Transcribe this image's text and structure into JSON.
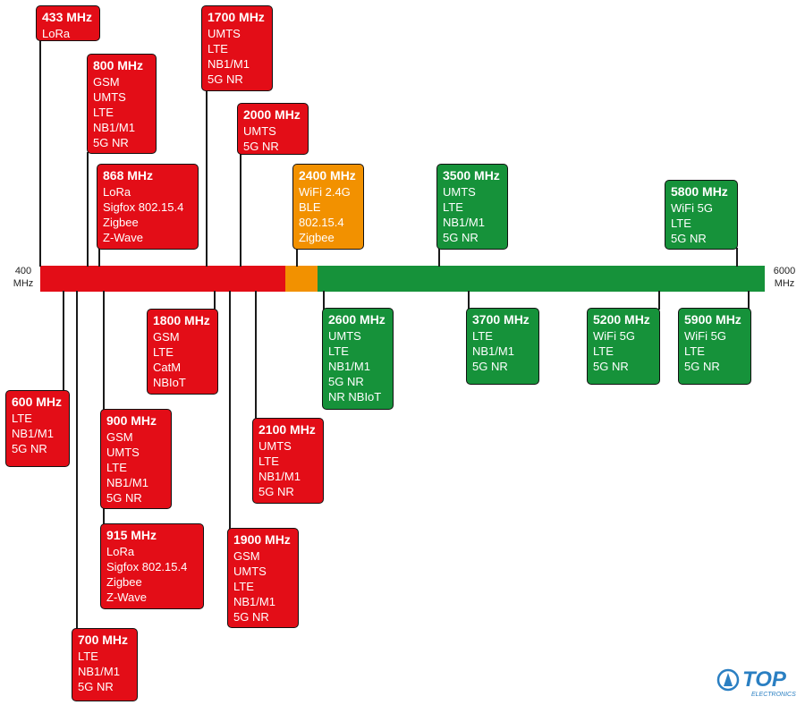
{
  "scale": {
    "start_label": [
      "400",
      "MHz"
    ],
    "end_label": [
      "6000",
      "MHz"
    ],
    "min_mhz": 400,
    "max_mhz": 6000
  },
  "segments": [
    {
      "name": "cellular-red",
      "from_mhz": 400,
      "to_mhz": 2400,
      "color": "#e30d17"
    },
    {
      "name": "orange",
      "from_mhz": 2400,
      "to_mhz": 2600,
      "color": "#f29100"
    },
    {
      "name": "green",
      "from_mhz": 2600,
      "to_mhz": 6000,
      "color": "#16923a"
    }
  ],
  "bands": [
    {
      "freq": "433 MHz",
      "color": "red",
      "techs": [
        "LoRa"
      ]
    },
    {
      "freq": "800 MHz",
      "color": "red",
      "techs": [
        "GSM",
        "UMTS",
        "LTE",
        "NB1/M1",
        "5G NR"
      ]
    },
    {
      "freq": "868 MHz",
      "color": "red",
      "techs": [
        "LoRa",
        "Sigfox 802.15.4",
        "Zigbee",
        "Z-Wave"
      ]
    },
    {
      "freq": "1700 MHz",
      "color": "red",
      "techs": [
        "UMTS",
        "LTE",
        "NB1/M1",
        "5G NR"
      ]
    },
    {
      "freq": "2000 MHz",
      "color": "red",
      "techs": [
        "UMTS",
        "5G NR"
      ]
    },
    {
      "freq": "2400 MHz",
      "color": "orange",
      "techs": [
        "WiFi 2.4G",
        "BLE",
        "802.15.4",
        "Zigbee"
      ]
    },
    {
      "freq": "3500 MHz",
      "color": "green",
      "techs": [
        "UMTS",
        "LTE",
        "NB1/M1",
        "5G NR"
      ]
    },
    {
      "freq": "5800 MHz",
      "color": "green",
      "techs": [
        "WiFi 5G",
        "LTE",
        "5G NR"
      ]
    },
    {
      "freq": "600 MHz",
      "color": "red",
      "techs": [
        "LTE",
        "NB1/M1",
        "5G NR"
      ]
    },
    {
      "freq": "700 MHz",
      "color": "red",
      "techs": [
        "LTE",
        "NB1/M1",
        "5G NR"
      ]
    },
    {
      "freq": "900 MHz",
      "color": "red",
      "techs": [
        "GSM",
        "UMTS",
        "LTE",
        "NB1/M1",
        "5G NR"
      ]
    },
    {
      "freq": "915 MHz",
      "color": "red",
      "techs": [
        "LoRa",
        "Sigfox 802.15.4",
        "Zigbee",
        "Z-Wave"
      ]
    },
    {
      "freq": "1800 MHz",
      "color": "red",
      "techs": [
        "GSM",
        "LTE",
        "CatM",
        "NBIoT"
      ]
    },
    {
      "freq": "1900 MHz",
      "color": "red",
      "techs": [
        "GSM",
        "UMTS",
        "LTE",
        "NB1/M1",
        "5G NR"
      ]
    },
    {
      "freq": "2100 MHz",
      "color": "red",
      "techs": [
        "UMTS",
        "LTE",
        "NB1/M1",
        "5G NR"
      ]
    },
    {
      "freq": "2600 MHz",
      "color": "green",
      "techs": [
        "UMTS",
        "LTE",
        "NB1/M1",
        "5G NR",
        "NR NBIoT"
      ]
    },
    {
      "freq": "3700 MHz",
      "color": "green",
      "techs": [
        "LTE",
        "NB1/M1",
        "5G NR"
      ]
    },
    {
      "freq": "5200 MHz",
      "color": "green",
      "techs": [
        "WiFi 5G",
        "LTE",
        "5G NR"
      ]
    },
    {
      "freq": "5900 MHz",
      "color": "green",
      "techs": [
        "WiFi 5G",
        "LTE",
        "5G NR"
      ]
    }
  ],
  "logo": {
    "brand": "TOP",
    "sub": "ELECTRONICS",
    "color": "#2a7fc2"
  }
}
